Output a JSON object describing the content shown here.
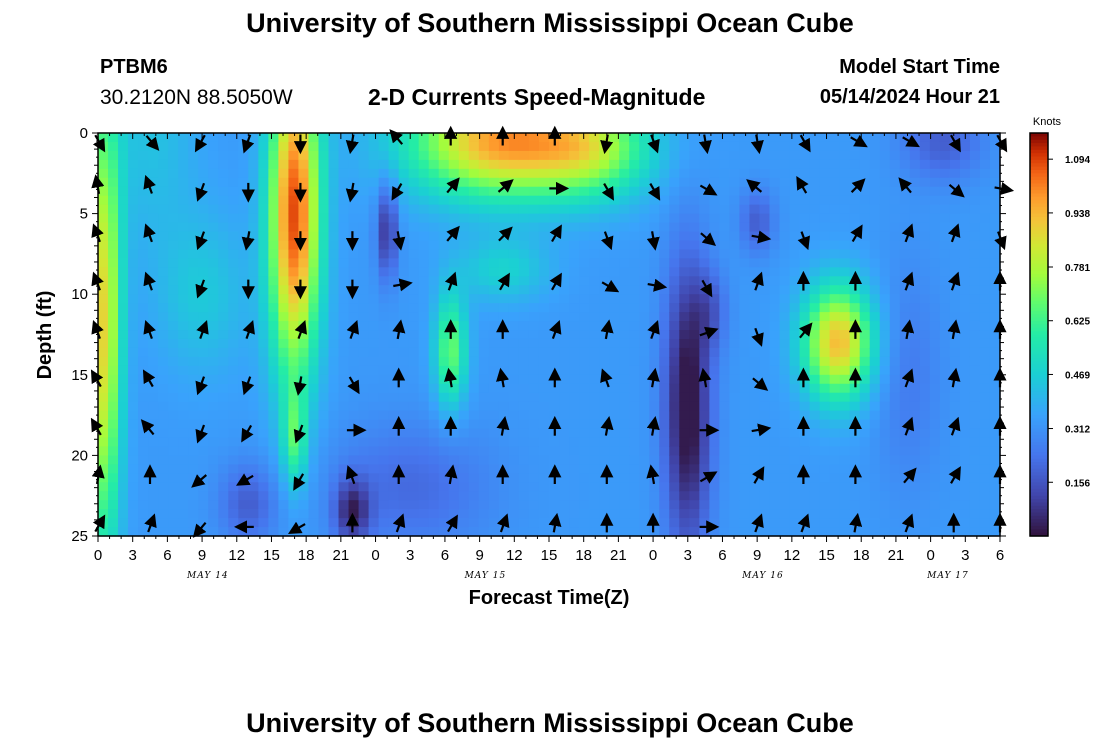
{
  "header": {
    "title": "University of Southern Mississippi Ocean Cube",
    "station": "PTBM6",
    "coordinates": "30.2120N  88.5050W",
    "subtitle": "2-D Currents Speed-Magnitude",
    "model_start_label": "Model Start Time",
    "model_start_value": "05/14/2024 Hour 21",
    "footer_title": "University of Southern Mississippi Ocean Cube"
  },
  "chart_data": {
    "type": "heatmap",
    "title": "2-D Currents Speed-Magnitude",
    "xlabel": "Forecast Time(Z)",
    "ylabel": "Depth (ft)",
    "x_range_hours": [
      0,
      78
    ],
    "ylim": [
      0,
      25
    ],
    "y_inverted": true,
    "x_tick_labels": [
      "0",
      "3",
      "6",
      "9",
      "12",
      "15",
      "18",
      "21",
      "0",
      "3",
      "6",
      "9",
      "12",
      "15",
      "18",
      "21",
      "0",
      "3",
      "6",
      "9",
      "12",
      "15",
      "18",
      "21",
      "0",
      "3",
      "6"
    ],
    "y_ticks": [
      0,
      5,
      10,
      15,
      20,
      25
    ],
    "date_labels": [
      {
        "label": "MAY 14",
        "hour": 9.5
      },
      {
        "label": "MAY 15",
        "hour": 33.5
      },
      {
        "label": "MAY 16",
        "hour": 57.5
      },
      {
        "label": "MAY 17",
        "hour": 73.5
      }
    ],
    "colorbar": {
      "unit": "Knots",
      "min": 0.0,
      "max": 1.17,
      "ticks": [
        "1.094",
        "0.938",
        "0.781",
        "0.625",
        "0.469",
        "0.312",
        "0.156"
      ],
      "tick_values": [
        1.094,
        0.938,
        0.781,
        0.625,
        0.469,
        0.312,
        0.156
      ]
    },
    "speed_features": [
      {
        "hour": 0.5,
        "depth": 12,
        "sx": 1.5,
        "sy": 14,
        "amp": 0.55
      },
      {
        "hour": 4.5,
        "depth": 0,
        "sx": 4,
        "sy": 7,
        "amp": 0.1
      },
      {
        "hour": 9,
        "depth": 10,
        "sx": 4,
        "sy": 5,
        "amp": 0.12
      },
      {
        "hour": 17,
        "depth": 5,
        "sx": 2.2,
        "sy": 10,
        "amp": 0.75
      },
      {
        "hour": 17,
        "depth": 19,
        "sx": 1.0,
        "sy": 3,
        "amp": 0.25
      },
      {
        "hour": 13,
        "depth": 23,
        "sx": 2.5,
        "sy": 2.5,
        "amp": -0.15
      },
      {
        "hour": 22,
        "depth": 23.5,
        "sx": 1.5,
        "sy": 2,
        "amp": -0.25
      },
      {
        "hour": 25,
        "depth": 6,
        "sx": 0.9,
        "sy": 3,
        "amp": -0.25
      },
      {
        "hour": 35,
        "depth": 0.5,
        "sx": 8,
        "sy": 3.5,
        "amp": 0.65
      },
      {
        "hour": 43,
        "depth": 1,
        "sx": 5,
        "sy": 3,
        "amp": 0.3
      },
      {
        "hour": 30.5,
        "depth": 13.5,
        "sx": 1.4,
        "sy": 3.5,
        "amp": 0.35
      },
      {
        "hour": 27,
        "depth": 22,
        "sx": 7,
        "sy": 4,
        "amp": -0.12
      },
      {
        "hour": 35,
        "depth": 8.5,
        "sx": 4,
        "sy": 2,
        "amp": 0.15
      },
      {
        "hour": 51,
        "depth": 17,
        "sx": 2,
        "sy": 9,
        "amp": -0.35
      },
      {
        "hour": 53,
        "depth": 11,
        "sx": 1.5,
        "sy": 2.5,
        "amp": -0.12
      },
      {
        "hour": 57,
        "depth": 5.5,
        "sx": 1.5,
        "sy": 2,
        "amp": -0.15
      },
      {
        "hour": 64,
        "depth": 13,
        "sx": 3,
        "sy": 3.5,
        "amp": 0.6
      },
      {
        "hour": 73,
        "depth": 0.5,
        "sx": 3.5,
        "sy": 2.5,
        "amp": -0.15
      },
      {
        "hour": 70,
        "depth": 15,
        "sx": 3,
        "sy": 7,
        "amp": -0.08
      }
    ],
    "arrow_times": [
      0,
      4.5,
      9,
      13,
      17.5,
      22,
      26,
      30.5,
      35,
      39.5,
      44,
      48,
      52.5,
      57,
      61,
      65.5,
      70,
      74,
      78
    ],
    "arrow_depths": [
      0,
      3,
      6,
      9,
      12,
      15,
      18,
      21,
      24
    ],
    "arrow_directions_deg": [
      [
        150,
        140,
        210,
        200,
        180,
        190,
        320,
        0,
        0,
        0,
        190,
        160,
        170,
        170,
        150,
        120,
        120,
        150,
        150
      ],
      [
        350,
        340,
        200,
        180,
        180,
        190,
        210,
        40,
        50,
        90,
        150,
        150,
        120,
        310,
        330,
        45,
        320,
        130,
        100
      ],
      [
        340,
        340,
        200,
        190,
        180,
        180,
        170,
        40,
        45,
        30,
        160,
        170,
        130,
        100,
        160,
        30,
        20,
        20,
        160
      ],
      [
        340,
        340,
        200,
        180,
        180,
        180,
        80,
        20,
        30,
        30,
        120,
        100,
        150,
        20,
        0,
        0,
        20,
        20,
        0
      ],
      [
        340,
        340,
        20,
        20,
        20,
        20,
        10,
        0,
        0,
        20,
        10,
        20,
        70,
        160,
        40,
        0,
        10,
        10,
        0
      ],
      [
        330,
        330,
        200,
        200,
        190,
        150,
        0,
        350,
        350,
        0,
        340,
        10,
        350,
        130,
        0,
        0,
        20,
        10,
        0
      ],
      [
        330,
        320,
        200,
        210,
        200,
        90,
        0,
        0,
        10,
        0,
        10,
        10,
        90,
        80,
        0,
        0,
        20,
        20,
        0
      ],
      [
        10,
        0,
        230,
        240,
        210,
        340,
        0,
        10,
        0,
        0,
        0,
        350,
        60,
        30,
        0,
        0,
        40,
        30,
        0
      ],
      [
        30,
        20,
        220,
        270,
        240,
        0,
        20,
        30,
        20,
        10,
        0,
        0,
        90,
        20,
        20,
        10,
        20,
        0,
        0
      ]
    ]
  }
}
